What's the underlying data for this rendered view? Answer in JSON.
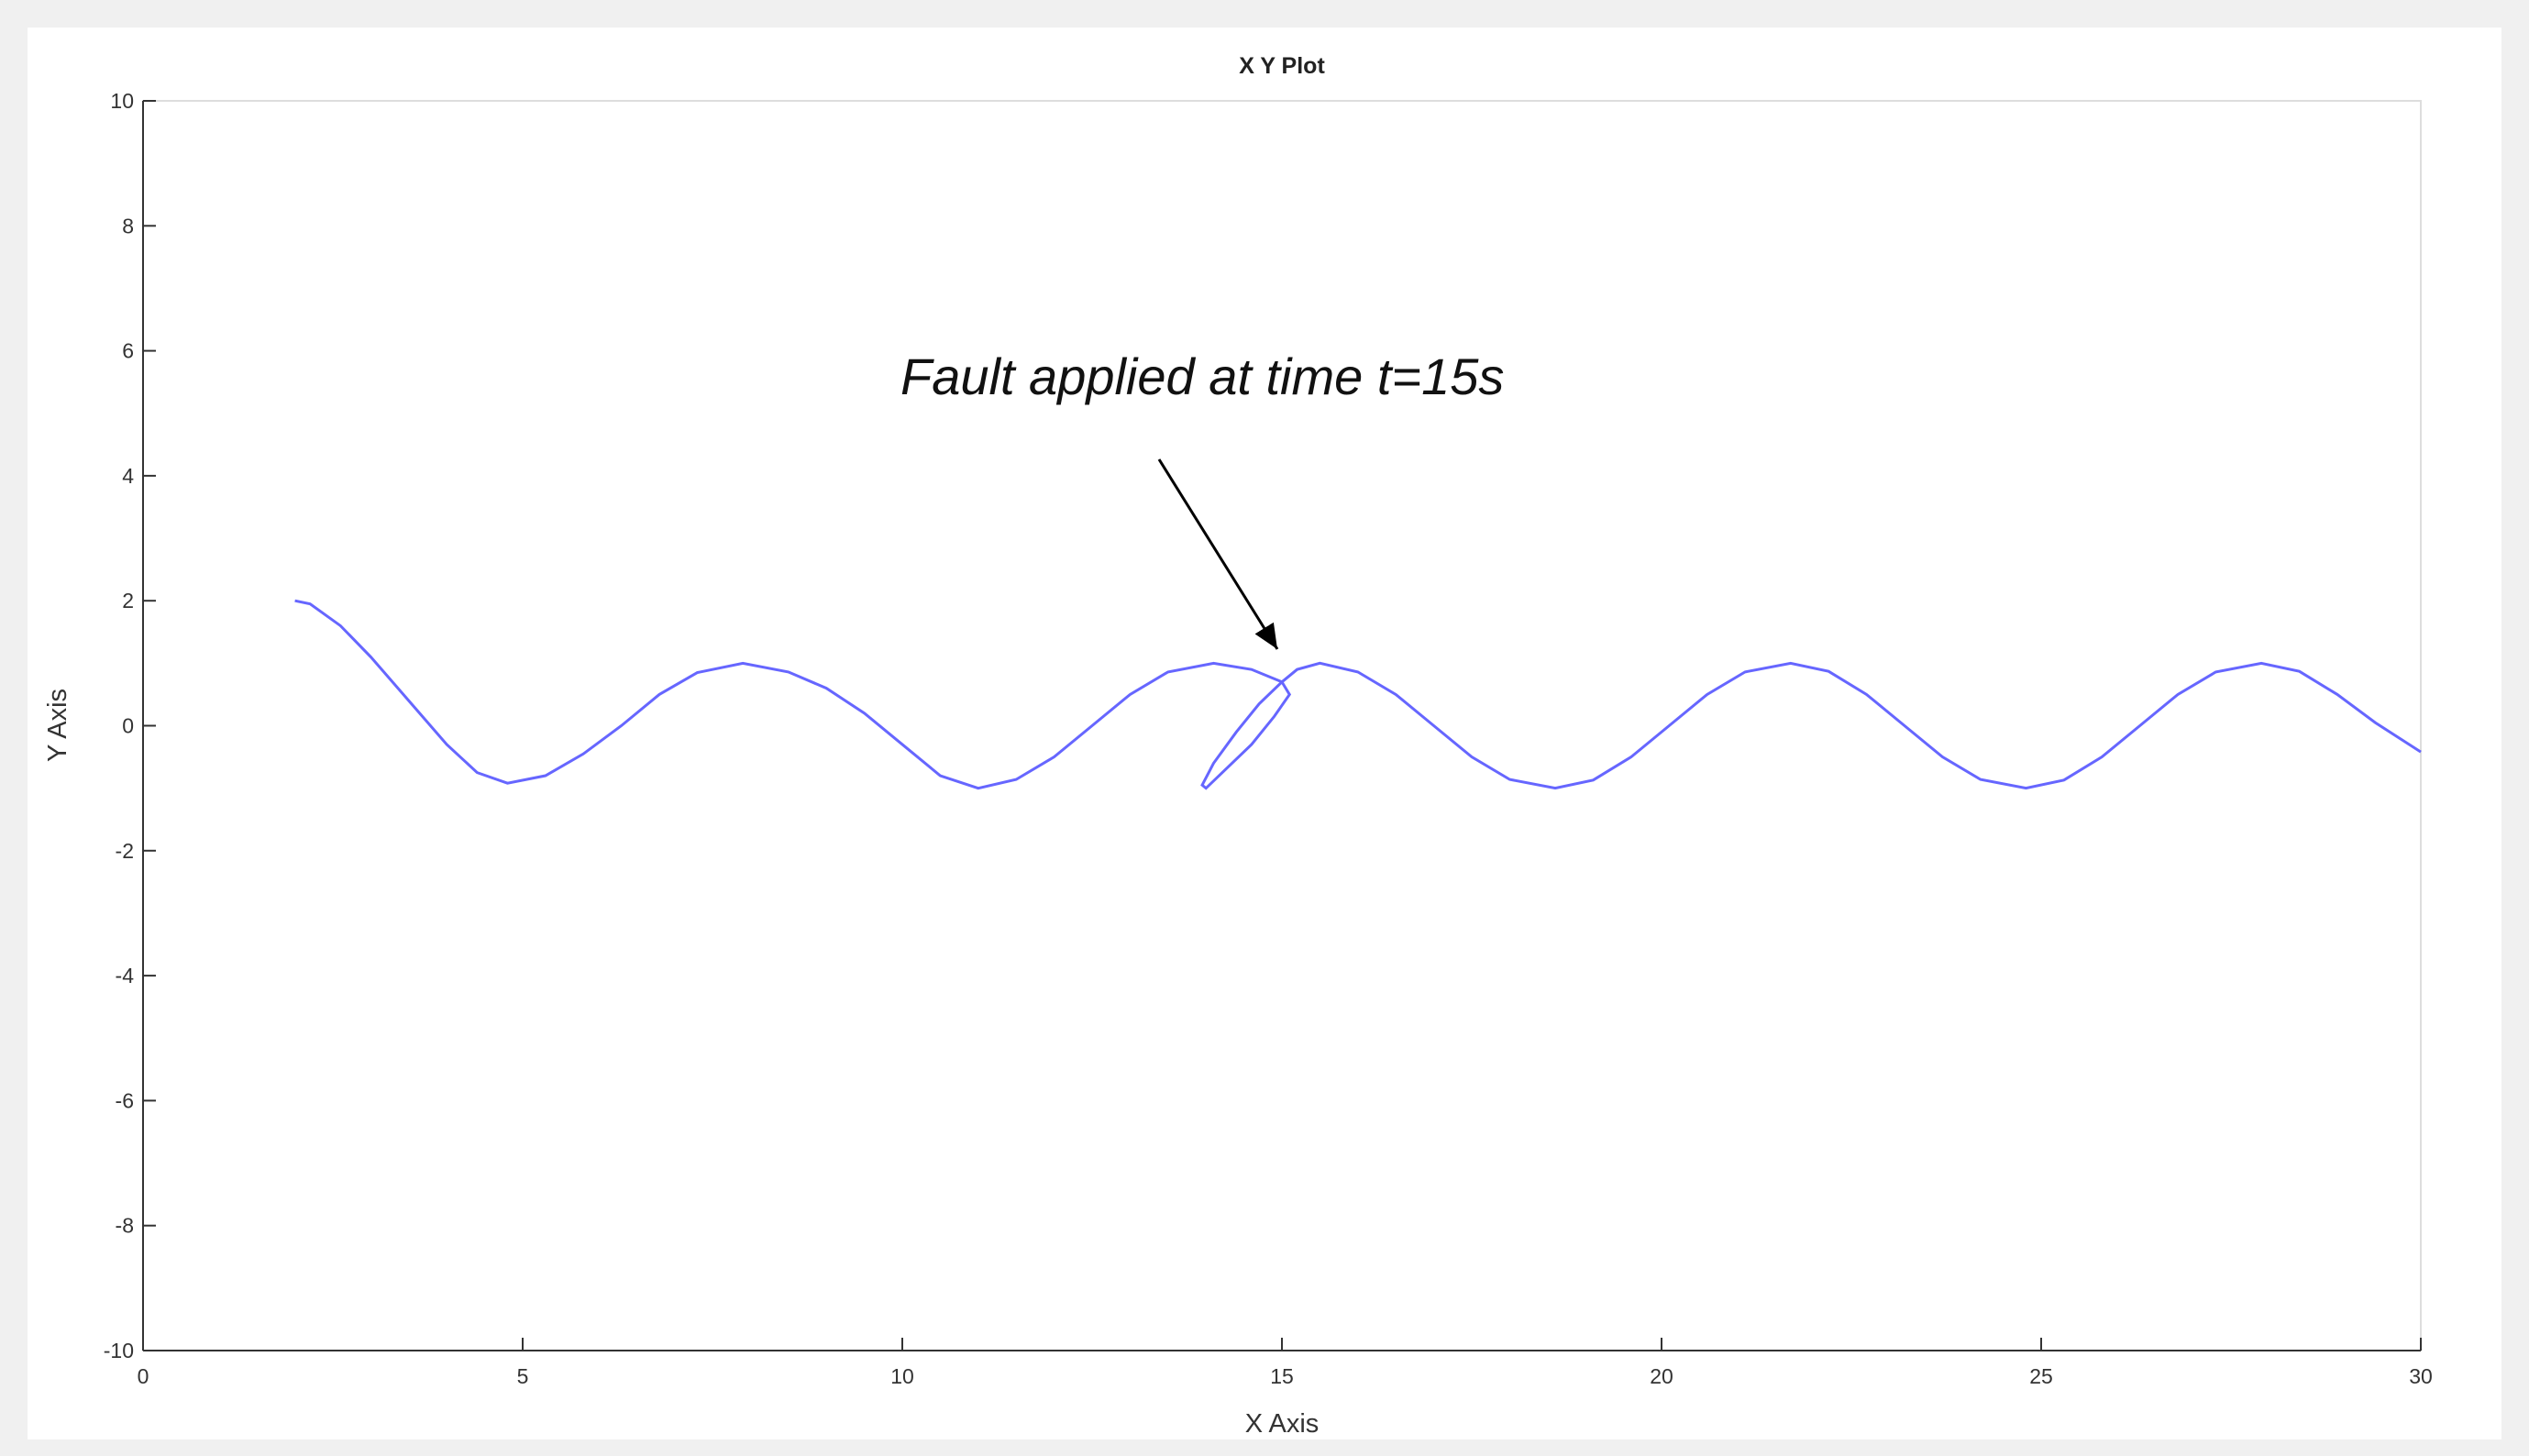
{
  "chart_data": {
    "type": "line",
    "title": "X Y Plot",
    "x_label": "X Axis",
    "y_label": "Y Axis",
    "annotation": "Fault applied at time t=15s",
    "color": "#6666ff",
    "grid": false,
    "xlim": [
      0,
      30
    ],
    "xticks": [
      0,
      5,
      10,
      15,
      20,
      25,
      30
    ],
    "ylim": [
      -10,
      10
    ],
    "yticks": [
      -10,
      -8,
      -6,
      -4,
      -2,
      0,
      2,
      4,
      6,
      8,
      10
    ],
    "x": [
      2.0,
      2.2,
      2.6,
      3.0,
      3.5,
      4.0,
      4.4,
      4.8,
      5.3,
      5.8,
      6.3,
      6.8,
      7.3,
      7.9,
      8.5,
      9.0,
      9.5,
      10.0,
      10.5,
      11.0,
      11.5,
      12.0,
      12.5,
      13.0,
      13.5,
      14.1,
      14.6,
      15.0,
      15.1,
      14.9,
      14.6,
      14.3,
      14.0,
      13.95,
      14.1,
      14.4,
      14.7,
      15.0,
      15.2,
      15.5,
      16.0,
      16.5,
      17.0,
      17.5,
      18.0,
      18.6,
      19.1,
      19.6,
      20.1,
      20.6,
      21.1,
      21.7,
      22.2,
      22.7,
      23.2,
      23.7,
      24.2,
      24.8,
      25.3,
      25.8,
      26.3,
      26.8,
      27.3,
      27.9,
      28.4,
      28.9,
      29.4,
      30.0
    ],
    "values": [
      2.0,
      1.95,
      1.6,
      1.1,
      0.4,
      -0.3,
      -0.75,
      -0.92,
      -0.8,
      -0.45,
      0.0,
      0.5,
      0.85,
      1.0,
      0.86,
      0.6,
      0.2,
      -0.3,
      -0.8,
      -1.0,
      -0.86,
      -0.5,
      0.0,
      0.5,
      0.86,
      1.0,
      0.9,
      0.7,
      0.5,
      0.15,
      -0.3,
      -0.65,
      -1.0,
      -0.95,
      -0.6,
      -0.1,
      0.35,
      0.7,
      0.9,
      1.0,
      0.86,
      0.5,
      0.0,
      -0.5,
      -0.86,
      -1.0,
      -0.87,
      -0.5,
      0.0,
      0.5,
      0.86,
      1.0,
      0.87,
      0.5,
      0.0,
      -0.5,
      -0.86,
      -1.0,
      -0.87,
      -0.5,
      0.0,
      0.5,
      0.86,
      1.0,
      0.87,
      0.5,
      0.05,
      -0.42
    ]
  }
}
